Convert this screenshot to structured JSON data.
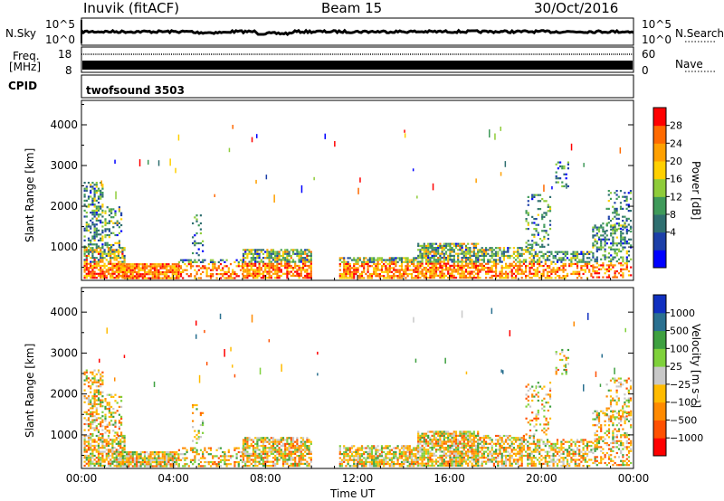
{
  "header": {
    "station": "Inuvik (fitACF)",
    "beam": "Beam 15",
    "date": "30/Oct/2016"
  },
  "strip": {
    "nsky_label": "N.Sky",
    "nsky_ticks": [
      "10^5",
      "10^0"
    ],
    "nsearch_label": "N.Search",
    "nsearch_ticks": [
      "10^5",
      "10^0"
    ],
    "freq_label_1": "Freq.",
    "freq_label_2": "[MHz]",
    "freq_ticks": [
      "18",
      "8"
    ],
    "nave_label": "Nave",
    "nave_ticks": [
      "60",
      "0"
    ],
    "cpid_label": "CPID",
    "cpid_value": "twofsound 3503"
  },
  "chart_data": [
    {
      "type": "heatmap",
      "name": "power-panel",
      "ylabel": "Slant Range [km]",
      "yticks": [
        1000,
        2000,
        3000,
        4000
      ],
      "ylim": [
        180,
        4600
      ],
      "xlim": [
        0,
        24
      ],
      "colorbar": {
        "label": "Power [dB]",
        "ticks": [
          "28",
          "24",
          "20",
          "16",
          "12",
          "8",
          "4"
        ],
        "colors": [
          "#0000ff",
          "#1c3fa8",
          "#2f6f70",
          "#3f9a5a",
          "#8fcc3a",
          "#ffd000",
          "#ffa000",
          "#ff6a00",
          "#ff0000"
        ]
      }
    },
    {
      "type": "heatmap",
      "name": "velocity-panel",
      "ylabel": "Slant Range [km]",
      "yticks": [
        1000,
        2000,
        3000,
        4000
      ],
      "ylim": [
        180,
        4600
      ],
      "xlim": [
        0,
        24
      ],
      "colorbar": {
        "label": "Velocity [m s⁻¹]",
        "ticks": [
          "1000",
          "500",
          "100",
          "25",
          "−25",
          "−100",
          "−500",
          "−1000"
        ],
        "colors": [
          "#ff0000",
          "#ff5000",
          "#ff8a00",
          "#ffbb00",
          "#c8c8c8",
          "#7fd13b",
          "#3ea040",
          "#2a7090",
          "#1030c0"
        ]
      }
    }
  ],
  "xaxis": {
    "ticks": [
      "00:00",
      "04:00",
      "08:00",
      "12:00",
      "16:00",
      "20:00",
      "00:00"
    ],
    "label": "Time UT"
  }
}
